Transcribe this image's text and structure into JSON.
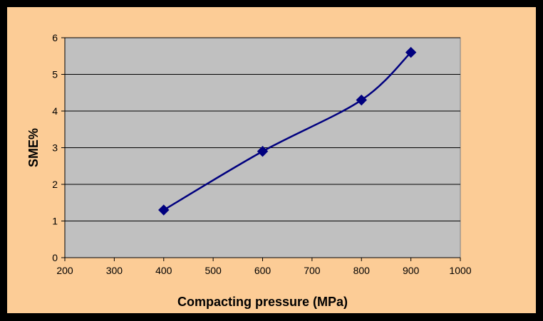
{
  "colors": {
    "frame": "#000000",
    "chart_background": "#FCCC96",
    "plot_background": "#C0C0C0",
    "gridline": "#000000",
    "series": "#00007F"
  },
  "chart_data": {
    "type": "line",
    "title": "",
    "xlabel": "Compacting pressure (MPa)",
    "ylabel": "SME%",
    "xlim": [
      200,
      1000
    ],
    "ylim": [
      0,
      6
    ],
    "xticks": [
      200,
      300,
      400,
      500,
      600,
      700,
      800,
      900,
      1000
    ],
    "yticks": [
      0,
      1,
      2,
      3,
      4,
      5,
      6
    ],
    "grid": "horizontal",
    "legend": "none",
    "series": [
      {
        "marker": "diamond-icon",
        "smoothed": true,
        "x": [
          400,
          600,
          800,
          900
        ],
        "y": [
          1.3,
          2.9,
          4.3,
          5.6
        ]
      }
    ]
  }
}
